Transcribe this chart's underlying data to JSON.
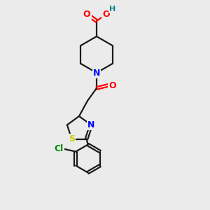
{
  "bg_color": "#ebebeb",
  "bond_color": "#1a1a1a",
  "bond_lw": 1.8,
  "atom_colors": {
    "O": "#ff0000",
    "N": "#0000ff",
    "S": "#cccc00",
    "Cl": "#008800",
    "H": "#008080",
    "C": "#1a1a1a"
  },
  "font_size": 9.5,
  "bold_font": true
}
